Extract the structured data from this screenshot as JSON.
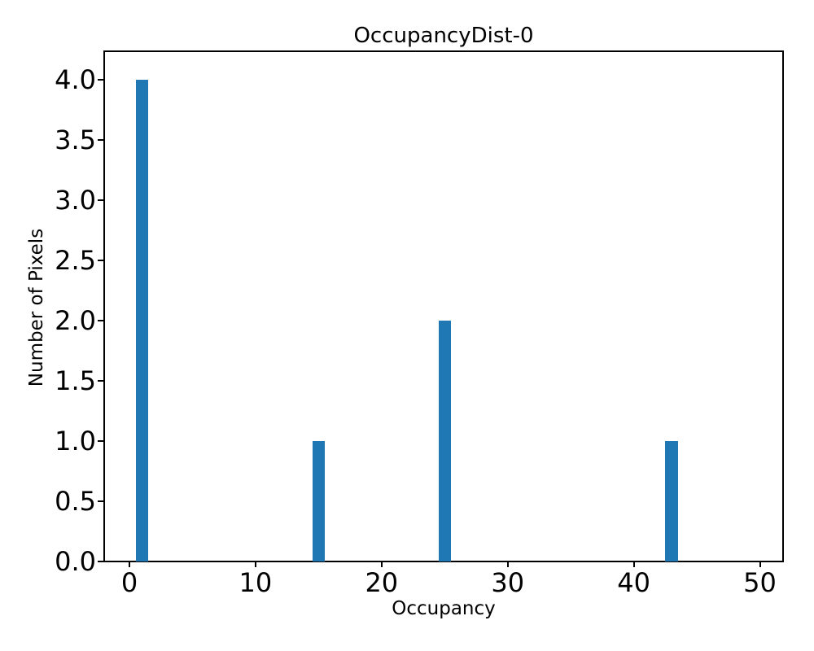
{
  "chart_data": {
    "type": "bar",
    "title": "OccupancyDist-0",
    "xlabel": "Occupancy",
    "ylabel": "Number of Pixels",
    "x": [
      1,
      15,
      25,
      43
    ],
    "values": [
      4,
      1,
      2,
      1
    ],
    "bar_width": 1,
    "xlim": [
      -2.0,
      51.84
    ],
    "ylim": [
      0,
      4.236
    ],
    "xticks": {
      "values": [
        0,
        10,
        20,
        30,
        40,
        50
      ],
      "labels": [
        "0",
        "10",
        "20",
        "30",
        "40",
        "50"
      ]
    },
    "yticks": {
      "values": [
        0,
        0.5,
        1,
        1.5,
        2,
        2.5,
        3,
        3.5,
        4
      ],
      "labels": [
        "0.0",
        "0.5",
        "1.0",
        "1.5",
        "2.0",
        "2.5",
        "3.0",
        "3.5",
        "4.0"
      ]
    },
    "grid": false,
    "legend": null,
    "colors": {
      "bar": "#1f77b4",
      "text": "#000000",
      "spine": "#000000",
      "background": "#ffffff"
    }
  }
}
